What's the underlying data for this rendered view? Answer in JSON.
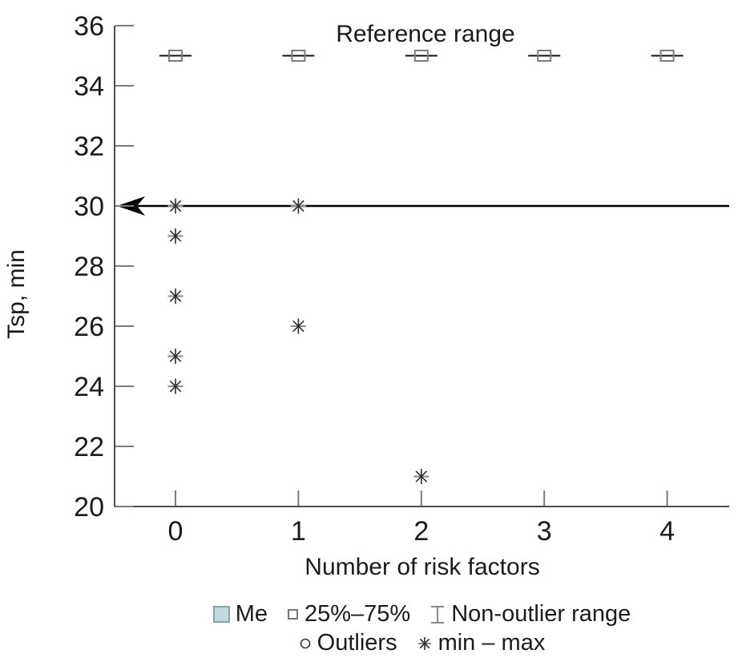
{
  "chart_data": {
    "type": "scatter",
    "title": "Reference range",
    "xlabel": "Number of risk factors",
    "ylabel": "Tsp, min",
    "x_categories": [
      "0",
      "1",
      "2",
      "3",
      "4"
    ],
    "ylim": [
      20,
      36
    ],
    "yticks": [
      36,
      34,
      32,
      30,
      28,
      26,
      24,
      22,
      20
    ],
    "grid": false,
    "reference_line": {
      "y": 30,
      "style": "horizontal-left-arrow"
    },
    "series": [
      {
        "name": "25%–75%",
        "marker": "square-with-whisker-caps",
        "points": [
          [
            0,
            35
          ],
          [
            1,
            35
          ],
          [
            2,
            35
          ],
          [
            3,
            35
          ],
          [
            4,
            35
          ]
        ]
      },
      {
        "name": "min – max",
        "marker": "asterisk",
        "points": [
          [
            0,
            30
          ],
          [
            0,
            29
          ],
          [
            0,
            27
          ],
          [
            0,
            25
          ],
          [
            0,
            24
          ],
          [
            1,
            30
          ],
          [
            1,
            26
          ],
          [
            2,
            21
          ]
        ]
      }
    ],
    "legend": {
      "position": "bottom",
      "rows": [
        [
          {
            "label": "Me",
            "marker": "filled-square",
            "fill": "#c5d9e0",
            "border": "#8e9fa6"
          },
          {
            "label": "25%–75%",
            "marker": "open-square"
          },
          {
            "label": "Non-outlier range",
            "marker": "error-bar"
          }
        ],
        [
          {
            "label": "Outliers",
            "marker": "open-circle"
          },
          {
            "label": "min – max",
            "marker": "asterisk"
          }
        ]
      ]
    },
    "colors": {
      "text": "#1b1b1b",
      "axis": "#4d4d4d",
      "tick": "#7a7a7a",
      "reference_line": "#000000",
      "box_border": "#7d7d7d",
      "box_cap_line": "#111111",
      "asterisk": "#2b2b2b",
      "asterisk_horizontal": "#8a8a8a",
      "me_fill": "#c5d9e0",
      "me_border": "#8e9fa6"
    }
  }
}
